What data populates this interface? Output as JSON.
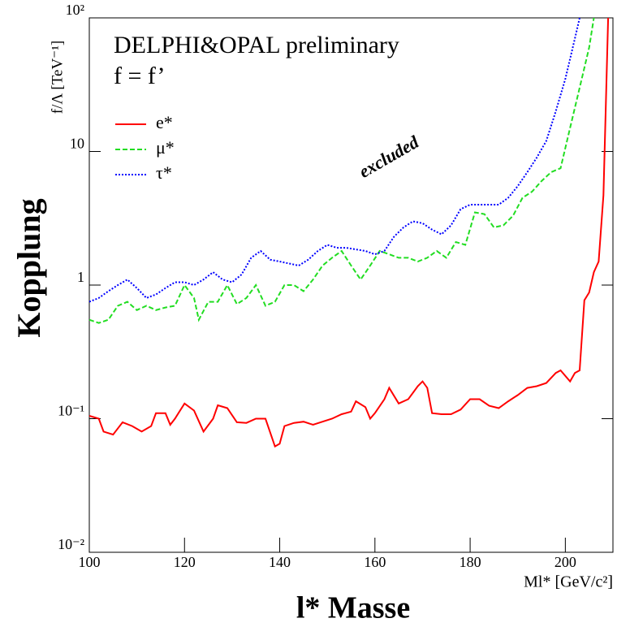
{
  "chart_data": {
    "type": "line",
    "title": "DELPHI&OPAL preliminary",
    "subtitle": "f = f’",
    "annotation": "excluded",
    "ylabel": "Kopplung",
    "ylabel_unit": "f/Λ [TeV⁻¹]",
    "xlabel": "l* Masse",
    "xlabel_unit": "Ml* [GeV/c²]",
    "log_y": true,
    "legend_position": "upper-left",
    "xlim": [
      100,
      210
    ],
    "ylim": [
      0.01,
      100
    ],
    "xticks": [
      100,
      120,
      140,
      160,
      180,
      200
    ],
    "yticks": [
      {
        "value": 100,
        "label": "10²"
      },
      10,
      1,
      {
        "value": 0.1,
        "label": "10⁻¹"
      },
      {
        "value": 0.01,
        "label": "10⁻²"
      }
    ],
    "series": [
      {
        "name": "e*",
        "color": "#ff0000",
        "dash": "solid",
        "x": [
          100,
          102,
          103,
          105,
          107,
          109,
          111,
          113,
          114,
          116,
          117,
          118,
          120,
          122,
          124,
          126,
          127,
          129,
          131,
          133,
          135,
          137,
          139,
          140,
          141,
          143,
          145,
          147,
          149,
          151,
          153,
          155,
          156,
          158,
          159,
          160,
          162,
          163,
          165,
          167,
          169,
          170,
          171,
          172,
          174,
          176,
          178,
          180,
          182,
          184,
          186,
          188,
          190,
          192,
          194,
          196,
          198,
          199,
          201,
          202,
          203,
          204,
          205,
          206,
          207,
          208,
          209
        ],
        "values": [
          0.105,
          0.1,
          0.08,
          0.076,
          0.094,
          0.088,
          0.08,
          0.088,
          0.11,
          0.11,
          0.09,
          0.1,
          0.13,
          0.115,
          0.08,
          0.1,
          0.126,
          0.12,
          0.094,
          0.093,
          0.1,
          0.1,
          0.062,
          0.065,
          0.088,
          0.093,
          0.095,
          0.09,
          0.095,
          0.1,
          0.108,
          0.113,
          0.135,
          0.122,
          0.1,
          0.11,
          0.14,
          0.17,
          0.13,
          0.14,
          0.175,
          0.19,
          0.17,
          0.11,
          0.108,
          0.108,
          0.117,
          0.14,
          0.14,
          0.125,
          0.12,
          0.135,
          0.15,
          0.17,
          0.175,
          0.185,
          0.22,
          0.23,
          0.19,
          0.22,
          0.23,
          0.77,
          0.88,
          1.25,
          1.5,
          4.7,
          100
        ]
      },
      {
        "name": "μ*",
        "color": "#22dd22",
        "dash": "dashed",
        "x": [
          100,
          102,
          104,
          106,
          108,
          110,
          112,
          114,
          116,
          118,
          120,
          122,
          123,
          125,
          127,
          129,
          131,
          133,
          135,
          137,
          139,
          141,
          143,
          145,
          147,
          149,
          151,
          153,
          155,
          157,
          159,
          161,
          163,
          165,
          167,
          169,
          171,
          173,
          175,
          177,
          179,
          181,
          183,
          185,
          187,
          189,
          191,
          193,
          195,
          197,
          199,
          201,
          203,
          205,
          206
        ],
        "values": [
          0.55,
          0.52,
          0.55,
          0.7,
          0.75,
          0.65,
          0.7,
          0.65,
          0.68,
          0.7,
          1.0,
          0.8,
          0.55,
          0.75,
          0.75,
          1.0,
          0.72,
          0.8,
          1.0,
          0.7,
          0.75,
          1.0,
          1.0,
          0.9,
          1.1,
          1.4,
          1.6,
          1.8,
          1.4,
          1.1,
          1.4,
          1.8,
          1.7,
          1.6,
          1.6,
          1.5,
          1.6,
          1.8,
          1.6,
          2.1,
          2.0,
          3.5,
          3.4,
          2.7,
          2.8,
          3.3,
          4.5,
          5,
          6,
          7,
          7.5,
          15,
          30,
          60,
          100
        ]
      },
      {
        "name": "τ*",
        "color": "#0000ff",
        "dash": "dotted",
        "x": [
          100,
          102,
          104,
          106,
          108,
          110,
          112,
          114,
          116,
          118,
          120,
          122,
          124,
          126,
          128,
          130,
          132,
          134,
          136,
          138,
          140,
          142,
          144,
          146,
          148,
          150,
          152,
          154,
          156,
          158,
          160,
          162,
          164,
          166,
          168,
          170,
          172,
          174,
          176,
          178,
          180,
          182,
          184,
          186,
          188,
          190,
          192,
          194,
          196,
          198,
          200,
          202,
          203
        ],
        "values": [
          0.75,
          0.8,
          0.9,
          1.0,
          1.1,
          0.95,
          0.8,
          0.85,
          0.95,
          1.05,
          1.05,
          1.0,
          1.1,
          1.25,
          1.1,
          1.05,
          1.2,
          1.6,
          1.8,
          1.55,
          1.5,
          1.45,
          1.4,
          1.55,
          1.8,
          2.0,
          1.9,
          1.9,
          1.85,
          1.8,
          1.7,
          1.8,
          2.3,
          2.7,
          3.0,
          2.9,
          2.6,
          2.4,
          2.8,
          3.7,
          4.0,
          4.0,
          4.0,
          4.0,
          4.5,
          5.5,
          7,
          9,
          12,
          20,
          35,
          70,
          100
        ]
      }
    ]
  }
}
